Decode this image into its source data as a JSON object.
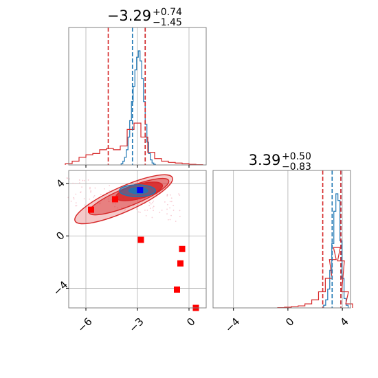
{
  "colors": {
    "blue": "#1f77b4",
    "red": "#d62728",
    "red_marker": "#ff0000",
    "truth_marker": "#0000ff",
    "grid": "#b0b0b0",
    "frame": "#808080"
  },
  "titles": {
    "p1": {
      "main": "−3.29",
      "sup": "+0.74",
      "sub": "−1.45"
    },
    "p2": {
      "main": "3.39",
      "sup": "+0.50",
      "sub": "−0.83"
    }
  },
  "chart_data": [
    {
      "type": "histogram",
      "panel": "marginal-param-1",
      "xlim": [
        -7,
        1
      ],
      "xticks": [
        -6,
        -3,
        0
      ],
      "grid": true,
      "quantile_lines": {
        "blue": [
          -3.29,
          -2.55
        ],
        "red": [
          -4.7,
          -2.55
        ]
      },
      "series": [
        {
          "color": "blue",
          "x": [
            -3.9,
            -3.8,
            -3.7,
            -3.6,
            -3.5,
            -3.4,
            -3.3,
            -3.2,
            -3.1,
            -3.0,
            -2.9,
            -2.8,
            -2.7,
            -2.6,
            -2.5,
            -2.4,
            -2.3,
            -2.2,
            -2.1,
            -2.0
          ],
          "values": [
            0.01,
            0.03,
            0.06,
            0.12,
            0.22,
            0.35,
            0.5,
            0.62,
            0.75,
            0.85,
            0.9,
            0.82,
            0.68,
            0.5,
            0.32,
            0.18,
            0.09,
            0.04,
            0.015,
            0.005
          ]
        },
        {
          "color": "red",
          "x": [
            -7.0,
            -6.6,
            -6.2,
            -5.8,
            -5.4,
            -5.0,
            -4.6,
            -4.2,
            -3.8,
            -3.4,
            -3.0,
            -2.6,
            -2.2,
            -1.8,
            -1.4,
            -1.0,
            -0.6,
            -0.2,
            0.2,
            0.6
          ],
          "values": [
            0.01,
            0.03,
            0.06,
            0.08,
            0.09,
            0.12,
            0.13,
            0.12,
            0.15,
            0.28,
            0.33,
            0.22,
            0.1,
            0.05,
            0.03,
            0.02,
            0.015,
            0.01,
            0.005,
            0.002
          ]
        }
      ]
    },
    {
      "type": "histogram",
      "panel": "marginal-param-2",
      "xlim": [
        -5.5,
        4.6
      ],
      "xticks": [
        -4,
        0,
        4
      ],
      "grid": true,
      "quantile_lines": {
        "blue": [
          3.25,
          3.9
        ],
        "red": [
          2.56,
          3.89
        ]
      },
      "series": [
        {
          "color": "blue",
          "x": [
            2.7,
            2.85,
            3.0,
            3.15,
            3.3,
            3.45,
            3.6,
            3.75,
            3.9,
            4.05,
            4.2,
            4.35
          ],
          "values": [
            0.02,
            0.06,
            0.14,
            0.28,
            0.48,
            0.72,
            0.85,
            0.8,
            0.5,
            0.22,
            0.07,
            0.02
          ]
        },
        {
          "color": "red",
          "x": [
            -0.5,
            0.0,
            0.5,
            1.0,
            1.5,
            2.0,
            2.5,
            3.0,
            3.3,
            3.6,
            3.9,
            4.2,
            4.5
          ],
          "values": [
            0.002,
            0.005,
            0.01,
            0.015,
            0.03,
            0.06,
            0.12,
            0.22,
            0.36,
            0.45,
            0.35,
            0.12,
            0.03
          ]
        }
      ]
    },
    {
      "type": "scatter",
      "panel": "joint-param-1-param-2",
      "xlim": [
        -7,
        1
      ],
      "ylim": [
        -5.5,
        5
      ],
      "xticks": [
        -6,
        -3,
        0
      ],
      "yticks": [
        -4,
        0,
        4
      ],
      "grid": true,
      "contours": [
        {
          "color": "red",
          "center": [
            -3.8,
            2.8
          ],
          "rx": 3.1,
          "ry": 0.95,
          "angle_deg": -24
        },
        {
          "color": "red",
          "center": [
            -3.5,
            3.0
          ],
          "rx": 2.5,
          "ry": 0.7,
          "angle_deg": -22
        },
        {
          "color": "red",
          "center": [
            -2.9,
            3.4
          ],
          "rx": 1.4,
          "ry": 0.55,
          "angle_deg": -15
        },
        {
          "color": "blue",
          "center": [
            -3.0,
            3.45
          ],
          "rx": 1.05,
          "ry": 0.45,
          "angle_deg": 0
        },
        {
          "color": "blue",
          "center": [
            -2.95,
            3.45
          ],
          "rx": 0.55,
          "ry": 0.22,
          "angle_deg": 0
        }
      ],
      "red_points": [
        {
          "x": -5.7,
          "y": 2.0
        },
        {
          "x": -4.3,
          "y": 2.8
        },
        {
          "x": -2.8,
          "y": -0.3
        },
        {
          "x": -0.4,
          "y": -1.0
        },
        {
          "x": -0.5,
          "y": -2.1
        },
        {
          "x": -0.7,
          "y": -4.1
        },
        {
          "x": 0.4,
          "y": -5.5
        }
      ],
      "truth_point": {
        "x": -2.85,
        "y": 3.5
      }
    }
  ]
}
